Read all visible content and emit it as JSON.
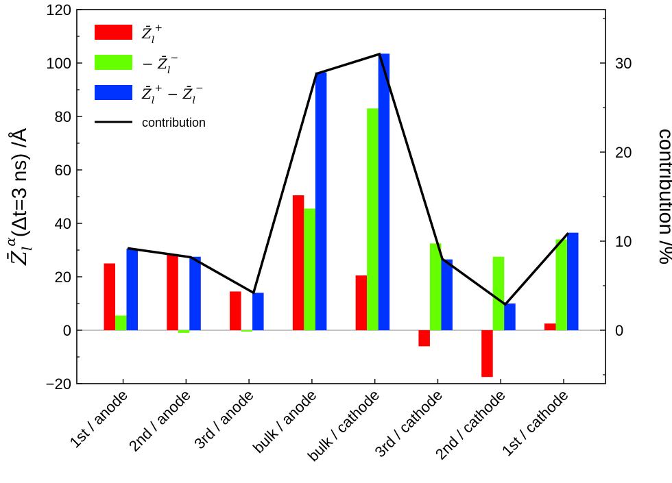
{
  "chart_data": {
    "type": "bar",
    "categories": [
      "1st / anode",
      "2nd / anode",
      "3rd / anode",
      "bulk / anode",
      "bulk / cathode",
      "3rd / cathode",
      "2nd / cathode",
      "1st / cathode"
    ],
    "series": [
      {
        "name": "Z̄l+",
        "color": "#ff0000",
        "values": [
          25,
          28.5,
          14.5,
          50.5,
          20.5,
          -6,
          -17.5,
          2.5
        ]
      },
      {
        "name": "−Z̄l−",
        "color": "#66ff00",
        "values": [
          5.5,
          -1,
          -0.5,
          45.5,
          83,
          32.5,
          27.5,
          34
        ]
      },
      {
        "name": "Z̄l+ − Z̄l−",
        "color": "#0033ff",
        "values": [
          30.5,
          27.5,
          14,
          96.5,
          103.5,
          26.5,
          10,
          36.5
        ]
      }
    ],
    "line_series": {
      "name": "contribution",
      "color": "#000000",
      "axis": "right",
      "values": [
        9.2,
        8.2,
        4.2,
        28.8,
        31,
        8,
        2.9,
        10.9
      ]
    },
    "y_left": {
      "label_prefix": "Z̄",
      "label_sub": "l",
      "label_sup": "α",
      "label_suffix": "(Δt=3 ns) /Å",
      "ylim": [
        -20,
        120
      ],
      "ticks": [
        -20,
        0,
        20,
        40,
        60,
        80,
        100,
        120
      ],
      "tick_labels": [
        "−20",
        "0",
        "20",
        "40",
        "60",
        "80",
        "100",
        "120"
      ]
    },
    "y_right": {
      "label": "contribution /%",
      "ylim": [
        -6,
        36
      ],
      "ticks": [
        0,
        10,
        20,
        30
      ],
      "tick_labels": [
        "0",
        "10",
        "20",
        "30"
      ]
    },
    "legend": {
      "placement": "top-left",
      "entries": [
        {
          "kind": "bar",
          "color": "#ff0000",
          "math": "Z̄l+"
        },
        {
          "kind": "bar",
          "color": "#66ff00",
          "math": "−Z̄l−"
        },
        {
          "kind": "bar",
          "color": "#0033ff",
          "math": "Z̄l+ − Z̄l−"
        },
        {
          "kind": "line",
          "color": "#000000",
          "label": "contribution"
        }
      ]
    },
    "grid": false,
    "zero_line": true
  }
}
